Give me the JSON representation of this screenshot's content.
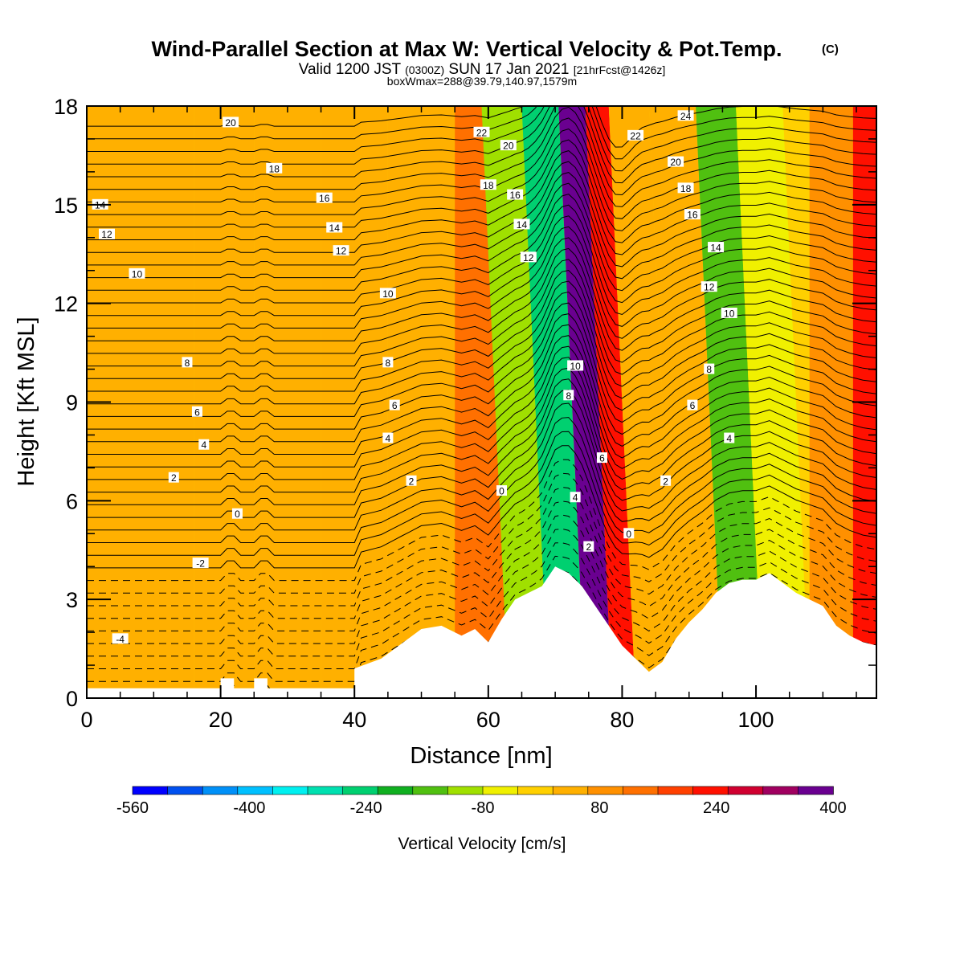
{
  "title": "Wind-Parallel Section at Max W: Vertical Velocity & Pot.Temp.",
  "title_mark": "(C)",
  "subtitle_parts": [
    "Valid 1200 JST",
    "(0300Z)",
    "SUN 17 Jan 2021",
    "[21hrFcst@1426z]"
  ],
  "subtitle2": "boxWmax=288@39.79,140.97,1579m",
  "colorbar": {
    "title": "Vertical Velocity [cm/s]",
    "tick_labels": [
      "-560",
      "-400",
      "-240",
      "-80",
      "80",
      "240",
      "400"
    ],
    "colors": [
      "#0000ff",
      "#0050f0",
      "#0090f8",
      "#00c0ff",
      "#00f0f0",
      "#00e0b0",
      "#00d070",
      "#10b020",
      "#50c010",
      "#a0e000",
      "#f0f000",
      "#ffd000",
      "#ffb000",
      "#ff9000",
      "#ff7000",
      "#ff4000",
      "#ff1000",
      "#d00030",
      "#a00060",
      "#6a0090"
    ]
  },
  "chart_data": {
    "type": "heatmap",
    "description_fields": "Vertical velocity (cm/s, shaded) with potential temperature contours (C) along a wind-parallel cross section",
    "xlabel": "Distance [nm]",
    "ylabel": "Height [Kft MSL]",
    "xlim": [
      0,
      118
    ],
    "ylim": [
      0,
      18
    ],
    "xticks": [
      0,
      20,
      40,
      60,
      80,
      100
    ],
    "yticks": [
      0,
      3,
      6,
      9,
      12,
      15,
      18
    ],
    "terrain": {
      "x": [
        0,
        20,
        20,
        22,
        22,
        25,
        25,
        27,
        27,
        40,
        40,
        44,
        46,
        48,
        50,
        53,
        56,
        58,
        60,
        62,
        64,
        66,
        68,
        70,
        72,
        74,
        76,
        78,
        80,
        82,
        84,
        86,
        88,
        90,
        92,
        94,
        96,
        98,
        100,
        102,
        104,
        106,
        108,
        110,
        112,
        114,
        116,
        118
      ],
      "y": [
        0.3,
        0.3,
        0.6,
        0.6,
        0.3,
        0.3,
        0.6,
        0.6,
        0.3,
        0.3,
        0.9,
        1.2,
        1.5,
        1.8,
        2.1,
        2.2,
        1.9,
        2.1,
        1.7,
        2.4,
        3.0,
        3.2,
        3.4,
        4.0,
        3.8,
        3.4,
        2.8,
        2.2,
        1.6,
        1.2,
        0.8,
        1.1,
        1.8,
        2.3,
        2.7,
        3.2,
        3.5,
        3.6,
        3.6,
        3.8,
        3.5,
        3.2,
        3.0,
        2.8,
        2.2,
        1.9,
        1.7,
        1.6
      ]
    },
    "velocity_bands": [
      {
        "x": 0,
        "w_cms": 40
      },
      {
        "x": 12,
        "w_cms": 60
      },
      {
        "x": 20,
        "w_cms": 20
      },
      {
        "x": 30,
        "w_cms": 50
      },
      {
        "x": 40,
        "w_cms": 30
      },
      {
        "x": 50,
        "w_cms": 20
      },
      {
        "x": 60,
        "w_cms": 150
      },
      {
        "x": 66,
        "w_cms": -100
      },
      {
        "x": 72,
        "w_cms": -260
      },
      {
        "x": 77,
        "w_cms": 360
      },
      {
        "x": 80,
        "w_cms": 220
      },
      {
        "x": 84,
        "w_cms": 40
      },
      {
        "x": 92,
        "w_cms": 30
      },
      {
        "x": 98,
        "w_cms": -160
      },
      {
        "x": 104,
        "w_cms": -60
      },
      {
        "x": 112,
        "w_cms": 100
      },
      {
        "x": 117,
        "w_cms": 230
      }
    ],
    "theta_contours": {
      "levels": [
        -4,
        -2,
        0,
        2,
        4,
        6,
        8,
        10,
        12,
        14,
        16,
        18,
        20,
        22,
        24
      ],
      "labels": [
        {
          "text": "-4",
          "x": 5,
          "y": 1.8
        },
        {
          "text": "-2",
          "x": 17,
          "y": 4.1
        },
        {
          "text": "0",
          "x": 22.5,
          "y": 5.6
        },
        {
          "text": "2",
          "x": 13,
          "y": 6.7
        },
        {
          "text": "4",
          "x": 17.5,
          "y": 7.7
        },
        {
          "text": "6",
          "x": 16.5,
          "y": 8.7
        },
        {
          "text": "8",
          "x": 15,
          "y": 10.2
        },
        {
          "text": "10",
          "x": 7.5,
          "y": 12.9
        },
        {
          "text": "12",
          "x": 3,
          "y": 14.1
        },
        {
          "text": "14",
          "x": 2,
          "y": 15.0
        },
        {
          "text": "16",
          "x": 35.5,
          "y": 15.2
        },
        {
          "text": "18",
          "x": 28,
          "y": 16.1
        },
        {
          "text": "20",
          "x": 21.5,
          "y": 17.5
        },
        {
          "text": "14",
          "x": 37,
          "y": 14.3
        },
        {
          "text": "12",
          "x": 38,
          "y": 13.6
        },
        {
          "text": "10",
          "x": 45,
          "y": 12.3
        },
        {
          "text": "8",
          "x": 45,
          "y": 10.2
        },
        {
          "text": "6",
          "x": 46,
          "y": 8.9
        },
        {
          "text": "4",
          "x": 45,
          "y": 7.9
        },
        {
          "text": "2",
          "x": 48.5,
          "y": 6.6
        },
        {
          "text": "0",
          "x": 62,
          "y": 6.3
        },
        {
          "text": "22",
          "x": 59,
          "y": 17.2
        },
        {
          "text": "20",
          "x": 63,
          "y": 16.8
        },
        {
          "text": "18",
          "x": 60,
          "y": 15.6
        },
        {
          "text": "16",
          "x": 64,
          "y": 15.3
        },
        {
          "text": "14",
          "x": 65,
          "y": 14.4
        },
        {
          "text": "12",
          "x": 66,
          "y": 13.4
        },
        {
          "text": "10",
          "x": 73,
          "y": 10.1
        },
        {
          "text": "8",
          "x": 72,
          "y": 9.2
        },
        {
          "text": "6",
          "x": 77,
          "y": 7.3
        },
        {
          "text": "4",
          "x": 73,
          "y": 6.1
        },
        {
          "text": "2",
          "x": 75,
          "y": 4.6
        },
        {
          "text": "0",
          "x": 81,
          "y": 5.0
        },
        {
          "text": "2",
          "x": 86.5,
          "y": 6.6
        },
        {
          "text": "22",
          "x": 82,
          "y": 17.1
        },
        {
          "text": "24",
          "x": 89.5,
          "y": 17.7
        },
        {
          "text": "20",
          "x": 88,
          "y": 16.3
        },
        {
          "text": "18",
          "x": 89.5,
          "y": 15.5
        },
        {
          "text": "16",
          "x": 90.5,
          "y": 14.7
        },
        {
          "text": "14",
          "x": 94,
          "y": 13.7
        },
        {
          "text": "12",
          "x": 93,
          "y": 12.5
        },
        {
          "text": "10",
          "x": 96,
          "y": 11.7
        },
        {
          "text": "8",
          "x": 93,
          "y": 10.0
        },
        {
          "text": "6",
          "x": 90.5,
          "y": 8.9
        },
        {
          "text": "4",
          "x": 96,
          "y": 7.9
        }
      ]
    }
  }
}
